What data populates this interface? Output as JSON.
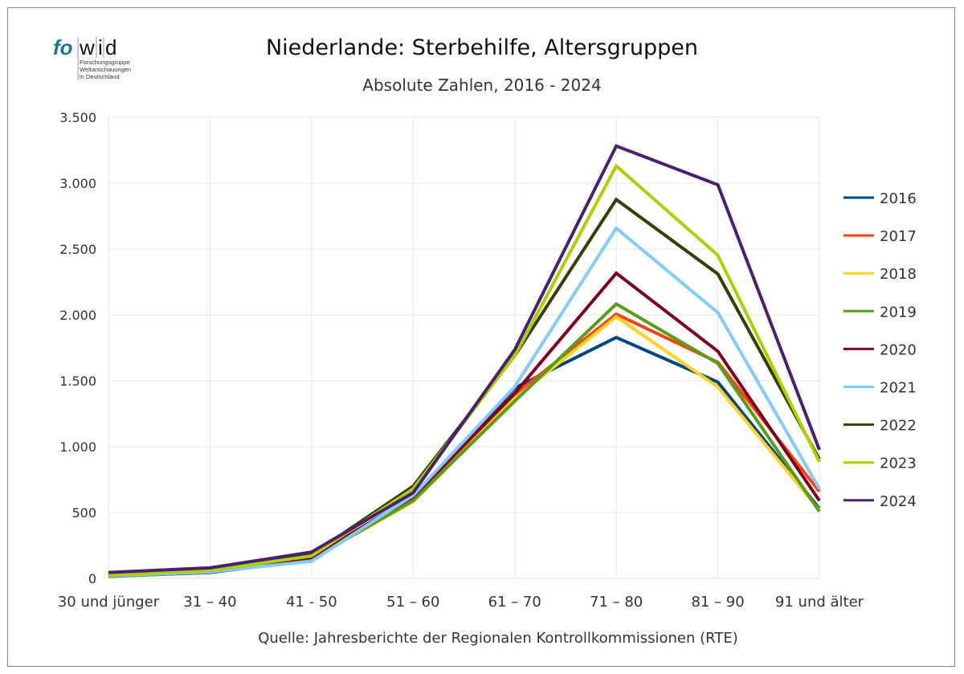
{
  "logo": {
    "text_main_1": "fo",
    "text_main_2": "wid",
    "line1": "Forschungsgruppe",
    "line2": "Weltanschauungen",
    "line3": "in Deutschland"
  },
  "chart_data": {
    "type": "line",
    "title": "Niederlande: Sterbehilfe, Altersgruppen",
    "subtitle": "Absolute Zahlen, 2016 - 2024",
    "source": "Quelle: Jahresberichte der Regionalen Kontrollkommissionen (RTE)",
    "categories": [
      "30 und jünger",
      "31 – 40",
      "41 - 50",
      "51 – 60",
      "61 – 70",
      "71 – 80",
      "81 – 90",
      "91 und älter"
    ],
    "ylim": [
      0,
      3500
    ],
    "yticks": [
      0,
      500,
      1000,
      1500,
      2000,
      2500,
      3000,
      3500
    ],
    "ytick_labels": [
      "0",
      "500",
      "1.000",
      "1.500",
      "2.000",
      "2.500",
      "3.000",
      "3.500"
    ],
    "grid": true,
    "legend_position": "right",
    "series": [
      {
        "name": "2016",
        "color": "#004586",
        "values": [
          15,
          45,
          140,
          600,
          1445,
          1829,
          1490,
          530
        ]
      },
      {
        "name": "2017",
        "color": "#ff420e",
        "values": [
          20,
          55,
          160,
          610,
          1395,
          2006,
          1640,
          660
        ]
      },
      {
        "name": "2018",
        "color": "#ffd320",
        "values": [
          15,
          50,
          150,
          580,
          1365,
          1986,
          1453,
          518
        ]
      },
      {
        "name": "2019",
        "color": "#579d1c",
        "values": [
          15,
          50,
          150,
          590,
          1345,
          2083,
          1632,
          508
        ]
      },
      {
        "name": "2020",
        "color": "#7e0021",
        "values": [
          20,
          55,
          160,
          620,
          1405,
          2317,
          1724,
          590
        ]
      },
      {
        "name": "2021",
        "color": "#83caff",
        "values": [
          20,
          50,
          130,
          630,
          1455,
          2658,
          2018,
          681
        ]
      },
      {
        "name": "2022",
        "color": "#314004",
        "values": [
          25,
          65,
          180,
          700,
          1690,
          2876,
          2311,
          904
        ]
      },
      {
        "name": "2023",
        "color": "#aecf00",
        "values": [
          25,
          60,
          170,
          680,
          1690,
          3130,
          2453,
          884
        ]
      },
      {
        "name": "2024",
        "color": "#4b1f6f",
        "values": [
          45,
          80,
          200,
          650,
          1735,
          3282,
          2988,
          976
        ]
      }
    ]
  }
}
